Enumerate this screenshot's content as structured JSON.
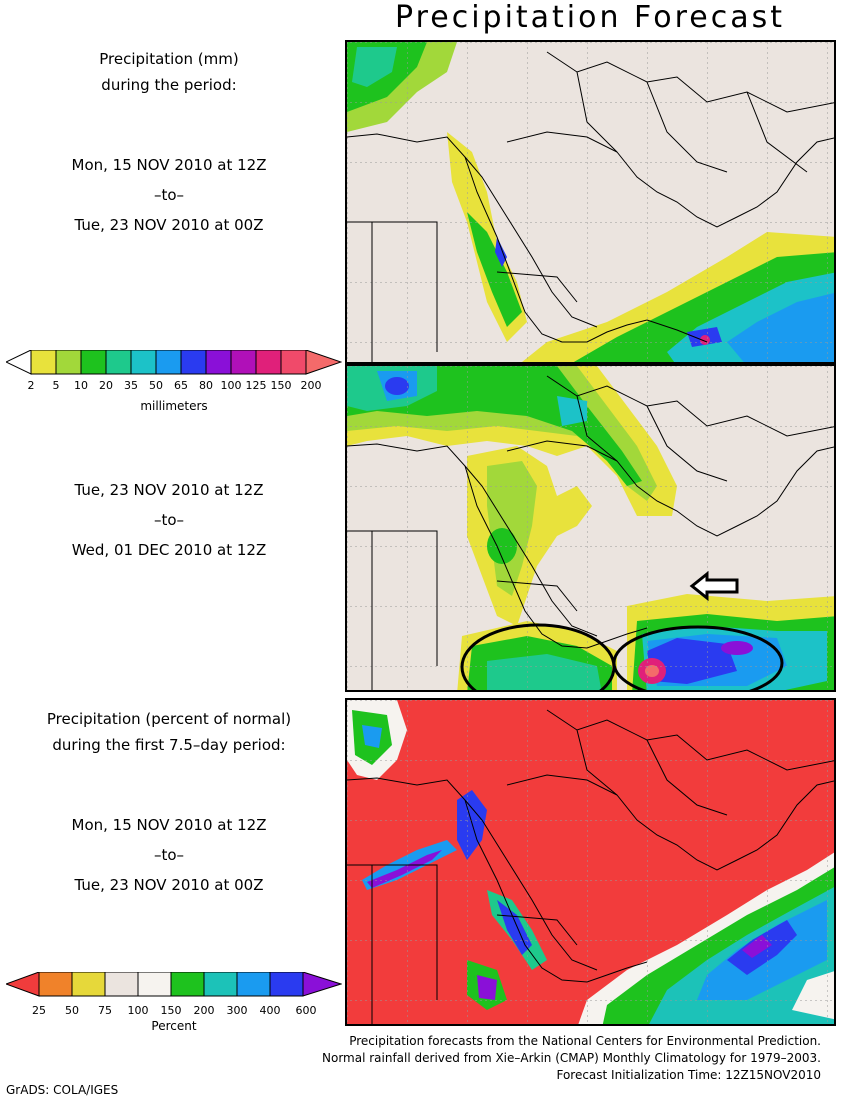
{
  "title": "Precipitation Forecast",
  "panel1": {
    "heading_line1": "Precipitation (mm)",
    "heading_line2": "during the period:",
    "start": "Mon, 15 NOV 2010 at 12Z",
    "to": "–to–",
    "end": "Tue, 23 NOV 2010 at 00Z"
  },
  "legend_mm": {
    "ticks": [
      "2",
      "5",
      "10",
      "20",
      "35",
      "50",
      "65",
      "80",
      "100",
      "125",
      "150",
      "200"
    ],
    "unit": "millimeters",
    "colors": [
      "#ffffff",
      "#e8e23c",
      "#a2d83a",
      "#1ec21e",
      "#1ec98c",
      "#1cc2c8",
      "#1a9bf0",
      "#2a3bf0",
      "#8a10d8",
      "#b010b8",
      "#e0207a",
      "#f04a6a",
      "#f46a6a"
    ]
  },
  "panel2": {
    "start": "Tue, 23 NOV 2010 at 12Z",
    "to": "–to–",
    "end": "Wed, 01 DEC 2010 at 12Z"
  },
  "panel3": {
    "heading_line1": "Precipitation (percent of normal)",
    "heading_line2": "during the first 7.5–day period:",
    "start": "Mon, 15 NOV 2010 at 12Z",
    "to": "–to–",
    "end": "Tue, 23 NOV 2010 at 00Z"
  },
  "legend_pct": {
    "ticks": [
      "25",
      "50",
      "75",
      "100",
      "150",
      "200",
      "300",
      "400",
      "600"
    ],
    "unit": "Percent",
    "colors": [
      "#f03c3c",
      "#f0822a",
      "#e6d83a",
      "#ebe4df",
      "#f6f3ef",
      "#1ec21e",
      "#1cc2b8",
      "#1a9bf0",
      "#2a3bf0",
      "#8a10d8"
    ]
  },
  "footer": {
    "line1": "Precipitation forecasts from the National Centers for Environmental Prediction.",
    "line2": "Normal rainfall derived from Xie–Arkin (CMAP) Monthly Climatology for 1979–2003.",
    "line3": "Forecast Initialization Time: 12Z15NOV2010"
  },
  "credit": "GrADS: COLA/IGES",
  "colors": {
    "land": "#ebe4df",
    "red_field": "#f23c3c"
  }
}
